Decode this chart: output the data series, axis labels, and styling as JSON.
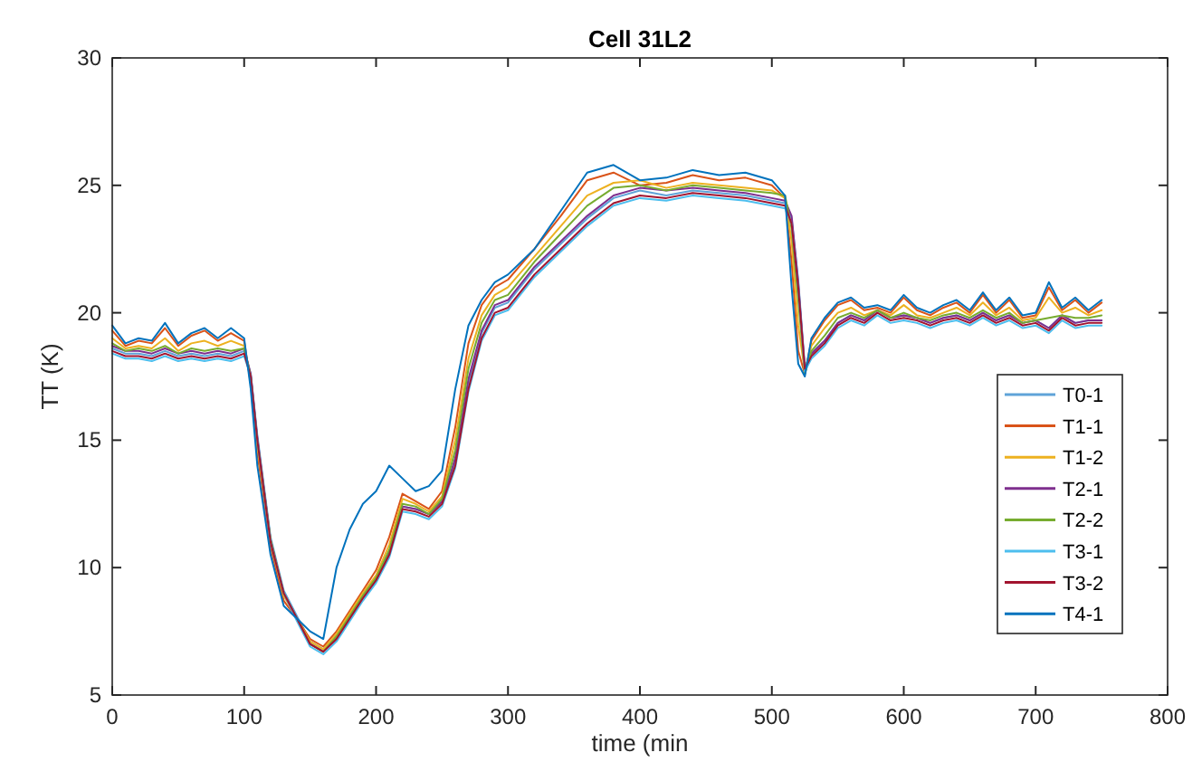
{
  "chart_data": {
    "type": "line",
    "title": "Cell 31L2",
    "xlabel": "time (min",
    "ylabel": "TT (K)",
    "xlim": [
      0,
      800
    ],
    "ylim": [
      5,
      30
    ],
    "xticks": [
      0,
      100,
      200,
      300,
      400,
      500,
      600,
      700,
      800
    ],
    "yticks": [
      5,
      10,
      15,
      20,
      25,
      30
    ],
    "grid": false,
    "legend": "right",
    "line_style": "solid",
    "marker": "none",
    "x": [
      0,
      10,
      20,
      30,
      40,
      50,
      60,
      70,
      80,
      90,
      100,
      105,
      110,
      120,
      130,
      140,
      150,
      160,
      170,
      180,
      190,
      200,
      210,
      220,
      230,
      240,
      250,
      260,
      270,
      280,
      290,
      300,
      320,
      340,
      360,
      380,
      400,
      420,
      440,
      460,
      480,
      500,
      510,
      515,
      520,
      525,
      530,
      540,
      550,
      560,
      570,
      580,
      590,
      600,
      610,
      620,
      630,
      640,
      650,
      660,
      670,
      680,
      690,
      700,
      710,
      720,
      730,
      740,
      750
    ],
    "series": [
      {
        "name": "T0-1",
        "color": "#5fa3d8",
        "values": [
          18.6,
          18.4,
          18.4,
          18.3,
          18.5,
          18.3,
          18.4,
          18.3,
          18.4,
          18.3,
          18.5,
          17.6,
          15.2,
          11.2,
          9.1,
          8.1,
          7.1,
          6.8,
          7.3,
          8.1,
          8.9,
          9.6,
          10.6,
          12.4,
          12.3,
          12.1,
          12.6,
          14.2,
          17.2,
          19.2,
          20.2,
          20.4,
          21.7,
          22.7,
          23.7,
          24.5,
          24.8,
          24.6,
          24.8,
          24.7,
          24.6,
          24.4,
          24.3,
          23.7,
          21.3,
          17.9,
          18.4,
          18.9,
          19.6,
          19.9,
          19.7,
          20.1,
          19.8,
          19.9,
          19.8,
          19.6,
          19.8,
          19.9,
          19.7,
          20.0,
          19.7,
          19.9,
          19.6,
          19.7,
          19.4,
          19.9,
          19.6,
          19.7,
          19.7
        ]
      },
      {
        "name": "T1-1",
        "color": "#d95319",
        "values": [
          19.3,
          18.7,
          18.9,
          18.8,
          19.4,
          18.7,
          19.1,
          19.3,
          18.9,
          19.2,
          18.9,
          17.2,
          14.5,
          10.8,
          8.7,
          8.0,
          7.2,
          6.9,
          7.5,
          8.3,
          9.1,
          9.9,
          11.2,
          12.9,
          12.6,
          12.3,
          13.0,
          15.5,
          18.8,
          20.3,
          21.0,
          21.3,
          22.5,
          23.8,
          25.2,
          25.5,
          25.0,
          25.1,
          25.4,
          25.2,
          25.3,
          25.0,
          24.5,
          22.0,
          18.5,
          17.6,
          18.9,
          19.7,
          20.3,
          20.5,
          20.1,
          20.2,
          20.0,
          20.6,
          20.1,
          19.9,
          20.2,
          20.4,
          20.0,
          20.7,
          20.0,
          20.5,
          19.8,
          19.9,
          21.0,
          20.1,
          20.5,
          20.0,
          20.4
        ]
      },
      {
        "name": "T1-2",
        "color": "#edb120",
        "values": [
          19.0,
          18.6,
          18.7,
          18.6,
          19.0,
          18.5,
          18.8,
          18.9,
          18.7,
          18.9,
          18.7,
          17.4,
          14.8,
          11.0,
          8.9,
          8.0,
          7.1,
          6.8,
          7.4,
          8.2,
          9.0,
          9.7,
          10.9,
          12.7,
          12.5,
          12.2,
          12.8,
          15.0,
          18.2,
          19.9,
          20.7,
          21.0,
          22.2,
          23.4,
          24.6,
          25.1,
          25.2,
          24.9,
          25.1,
          25.0,
          24.9,
          24.8,
          24.5,
          22.8,
          19.5,
          17.7,
          18.7,
          19.4,
          20.0,
          20.2,
          19.9,
          20.1,
          19.9,
          20.3,
          19.9,
          19.8,
          20.0,
          20.2,
          19.9,
          20.4,
          19.9,
          20.2,
          19.7,
          19.8,
          20.6,
          20.0,
          20.2,
          19.9,
          20.1
        ]
      },
      {
        "name": "T2-1",
        "color": "#7e2f8e",
        "values": [
          18.7,
          18.5,
          18.5,
          18.4,
          18.6,
          18.4,
          18.5,
          18.4,
          18.5,
          18.4,
          18.6,
          17.6,
          15.1,
          11.1,
          9.0,
          8.0,
          7.0,
          6.7,
          7.2,
          8.0,
          8.8,
          9.5,
          10.6,
          12.4,
          12.3,
          12.1,
          12.6,
          14.3,
          17.4,
          19.3,
          20.3,
          20.5,
          21.8,
          22.8,
          23.8,
          24.6,
          24.9,
          24.8,
          24.9,
          24.8,
          24.7,
          24.5,
          24.4,
          23.8,
          21.2,
          17.8,
          18.4,
          18.9,
          19.6,
          19.9,
          19.7,
          20.1,
          19.8,
          19.9,
          19.8,
          19.6,
          19.8,
          19.9,
          19.7,
          20.0,
          19.7,
          19.9,
          19.6,
          19.7,
          19.4,
          19.9,
          19.6,
          19.7,
          19.7
        ]
      },
      {
        "name": "T2-2",
        "color": "#77ac30",
        "values": [
          18.8,
          18.5,
          18.6,
          18.5,
          18.7,
          18.4,
          18.6,
          18.5,
          18.6,
          18.5,
          18.6,
          17.5,
          15.0,
          11.1,
          9.0,
          8.0,
          7.0,
          6.7,
          7.3,
          8.1,
          8.9,
          9.6,
          10.7,
          12.5,
          12.4,
          12.1,
          12.7,
          14.6,
          17.8,
          19.6,
          20.5,
          20.7,
          22.0,
          23.1,
          24.2,
          24.9,
          25.0,
          24.8,
          25.0,
          24.9,
          24.8,
          24.7,
          24.6,
          23.3,
          20.5,
          17.6,
          18.5,
          19.1,
          19.8,
          20.0,
          19.8,
          20.1,
          19.8,
          20.0,
          19.8,
          19.7,
          19.9,
          20.0,
          19.8,
          20.1,
          19.8,
          20.0,
          19.6,
          19.7,
          19.8,
          19.9,
          19.8,
          19.8,
          19.9
        ]
      },
      {
        "name": "T3-1",
        "color": "#4dbeee",
        "values": [
          18.4,
          18.2,
          18.2,
          18.1,
          18.3,
          18.1,
          18.2,
          18.1,
          18.2,
          18.1,
          18.3,
          17.5,
          15.0,
          11.0,
          9.0,
          7.9,
          6.9,
          6.6,
          7.1,
          7.9,
          8.7,
          9.4,
          10.4,
          12.2,
          12.1,
          11.9,
          12.4,
          13.9,
          16.9,
          18.9,
          19.9,
          20.1,
          21.4,
          22.4,
          23.4,
          24.2,
          24.5,
          24.4,
          24.6,
          24.5,
          24.4,
          24.2,
          24.1,
          23.5,
          21.0,
          17.7,
          18.2,
          18.7,
          19.4,
          19.7,
          19.5,
          19.9,
          19.6,
          19.7,
          19.6,
          19.4,
          19.6,
          19.7,
          19.5,
          19.8,
          19.5,
          19.7,
          19.4,
          19.5,
          19.2,
          19.7,
          19.4,
          19.5,
          19.5
        ]
      },
      {
        "name": "T3-2",
        "color": "#a2142f",
        "values": [
          18.5,
          18.3,
          18.3,
          18.2,
          18.4,
          18.2,
          18.3,
          18.2,
          18.3,
          18.2,
          18.4,
          17.5,
          15.0,
          11.0,
          9.0,
          8.0,
          7.0,
          6.7,
          7.2,
          8.0,
          8.8,
          9.5,
          10.5,
          12.3,
          12.2,
          12.0,
          12.5,
          14.0,
          17.0,
          19.0,
          20.0,
          20.2,
          21.5,
          22.5,
          23.5,
          24.3,
          24.6,
          24.5,
          24.7,
          24.6,
          24.5,
          24.3,
          24.2,
          23.5,
          21.0,
          17.8,
          18.3,
          18.8,
          19.5,
          19.8,
          19.6,
          20.0,
          19.7,
          19.8,
          19.7,
          19.5,
          19.7,
          19.8,
          19.6,
          19.9,
          19.6,
          19.8,
          19.5,
          19.6,
          19.3,
          19.8,
          19.5,
          19.6,
          19.6
        ]
      },
      {
        "name": "T4-1",
        "color": "#0072bd",
        "values": [
          19.5,
          18.8,
          19.0,
          18.9,
          19.6,
          18.8,
          19.2,
          19.4,
          19.0,
          19.4,
          19.0,
          17.0,
          14.0,
          10.5,
          8.5,
          8.0,
          7.5,
          7.2,
          10.0,
          11.5,
          12.5,
          13.0,
          14.0,
          13.5,
          13.0,
          13.2,
          13.8,
          17.0,
          19.5,
          20.5,
          21.2,
          21.5,
          22.5,
          24.0,
          25.5,
          25.8,
          25.2,
          25.3,
          25.6,
          25.4,
          25.5,
          25.2,
          24.6,
          21.0,
          18.0,
          17.5,
          19.0,
          19.8,
          20.4,
          20.6,
          20.2,
          20.3,
          20.1,
          20.7,
          20.2,
          20.0,
          20.3,
          20.5,
          20.1,
          20.8,
          20.1,
          20.6,
          19.9,
          20.0,
          21.2,
          20.2,
          20.6,
          20.1,
          20.5
        ]
      }
    ]
  }
}
